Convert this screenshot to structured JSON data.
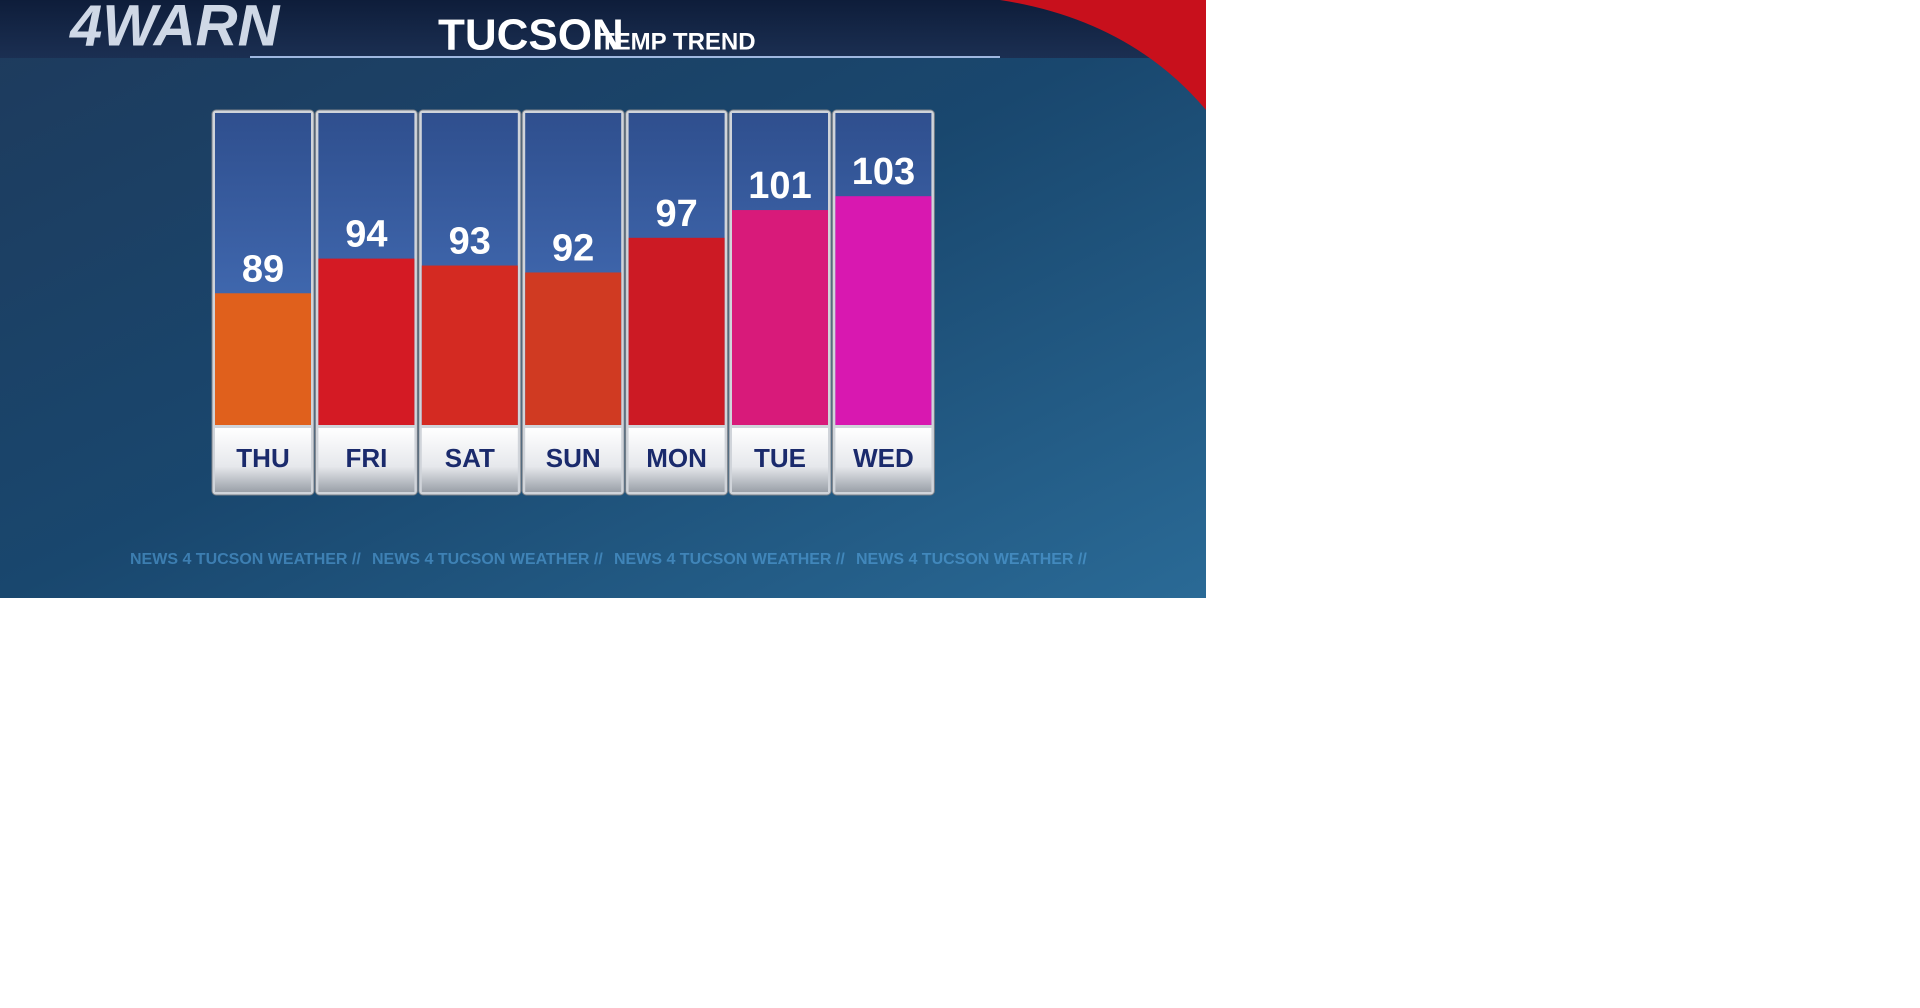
{
  "chart_data": {
    "type": "bar",
    "logo": "4WARN",
    "title": "TUCSON",
    "subtitle": "TEMP TREND",
    "ticker": "NEWS 4 TUCSON  WEATHER  //",
    "categories": [
      "THU",
      "FRI",
      "SAT",
      "SUN",
      "MON",
      "TUE",
      "WED"
    ],
    "values": [
      89,
      94,
      93,
      92,
      97,
      101,
      103
    ],
    "colors": [
      "#e0601c",
      "#d41a24",
      "#d42a22",
      "#d03a22",
      "#cc1a24",
      "#d81a7a",
      "#d818b0"
    ],
    "ylim": [
      70,
      115
    ]
  }
}
